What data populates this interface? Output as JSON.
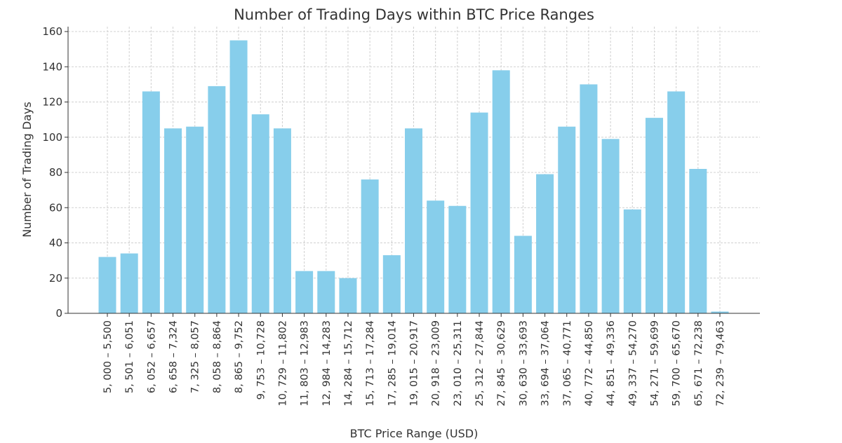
{
  "chart_data": {
    "type": "bar",
    "title": "Number of Trading Days within BTC Price Ranges",
    "xlabel": "BTC Price Range (USD)",
    "ylabel": "Number of Trading Days",
    "ylim": [
      0,
      160
    ],
    "yticks": [
      0,
      20,
      40,
      60,
      80,
      100,
      120,
      140,
      160
    ],
    "grid": true,
    "bar_color": "#87ceeb",
    "categories": [
      "5, 000 – 5,500",
      "5, 501 – 6,051",
      "6, 052 – 6,657",
      "6, 658 – 7,324",
      "7, 325 – 8,057",
      "8, 058 – 8,864",
      "8, 865 – 9,752",
      "9, 753 – 10,728",
      "10, 729 – 11,802",
      "11, 803 – 12,983",
      "12, 984 – 14,283",
      "14, 284 – 15,712",
      "15, 713 – 17,284",
      "17, 285 – 19,014",
      "19, 015 – 20,917",
      "20, 918 – 23,009",
      "23, 010 – 25,311",
      "25, 312 – 27,844",
      "27, 845 – 30,629",
      "30, 630 – 33,693",
      "33, 694 – 37,064",
      "37, 065 – 40,771",
      "40, 772 – 44,850",
      "44, 851 – 49,336",
      "49, 337 – 54,270",
      "54, 271 – 59,699",
      "59, 700 – 65,670",
      "65, 671 – 72,238",
      "72, 239 – 79,463"
    ],
    "values": [
      32,
      34,
      126,
      105,
      106,
      129,
      155,
      113,
      105,
      24,
      24,
      20,
      76,
      33,
      105,
      64,
      61,
      114,
      138,
      44,
      79,
      106,
      130,
      99,
      59,
      111,
      126,
      82,
      1
    ]
  }
}
